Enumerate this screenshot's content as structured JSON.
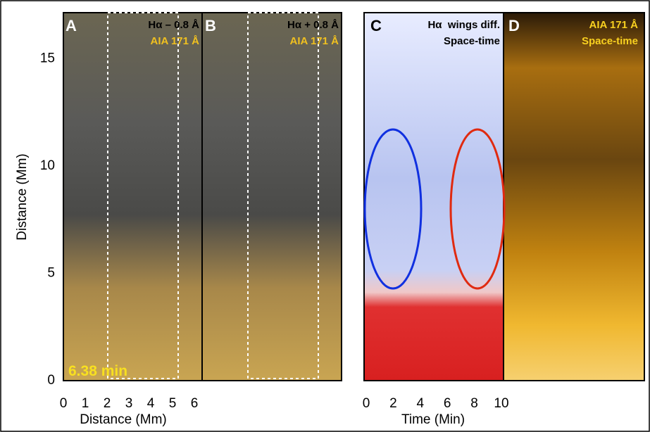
{
  "panels": [
    {
      "letter": "A",
      "lines": [
        "Hα – 0.8 Å",
        "AIA 171 Å"
      ]
    },
    {
      "letter": "B",
      "lines": [
        "Hα + 0.8 Å",
        "AIA 171 Å"
      ]
    },
    {
      "letter": "C",
      "lines": [
        "Hα  wings diff.",
        "Space-time"
      ]
    },
    {
      "letter": "D",
      "lines": [
        "AIA 171 Å",
        "Space-time"
      ]
    }
  ],
  "timestamp": "6.38 min",
  "y_axis": {
    "label": "Distance (Mm)",
    "ticks": [
      0,
      5,
      10,
      15
    ]
  },
  "x_axes": [
    {
      "label": "Distance (Mm)",
      "ticks": [
        0,
        1,
        2,
        3,
        4,
        5,
        6
      ]
    },
    {
      "label": "Time (Min)",
      "ticks": [
        0,
        2,
        4,
        6,
        8,
        10
      ]
    }
  ]
}
